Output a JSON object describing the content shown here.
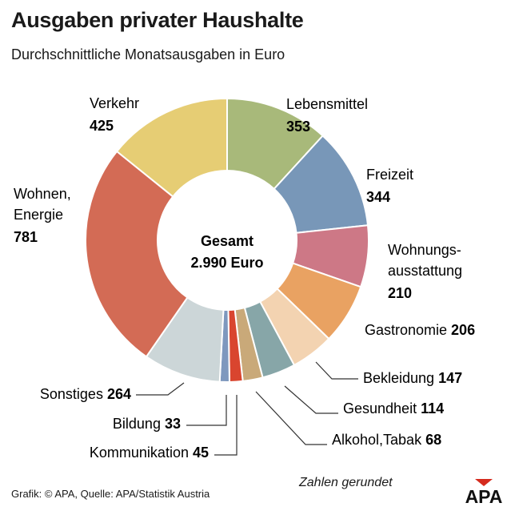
{
  "title": "Ausgaben privater Haushalte",
  "subtitle": "Durchschnittliche Monatsausgaben in Euro",
  "source": "Grafik: © APA, Quelle: APA/Statistik Austria",
  "note": "Zahlen gerundet",
  "logo_text": "APA",
  "center": {
    "line1": "Gesamt",
    "line2": "2.990 Euro"
  },
  "chart_data": {
    "type": "donut",
    "title": "Ausgaben privater Haushalte",
    "subtitle": "Durchschnittliche Monatsausgaben in Euro",
    "total_label": "Gesamt 2.990 Euro",
    "slices": [
      {
        "name": "Lebensmittel",
        "value": 353,
        "label_lines": [
          "Lebensmittel"
        ],
        "color": "#a8b97a"
      },
      {
        "name": "Freizeit",
        "value": 344,
        "label_lines": [
          "Freizeit"
        ],
        "color": "#7897b8"
      },
      {
        "name": "Wohnungsausstattung",
        "value": 210,
        "label_lines": [
          "Wohnungs-",
          "ausstattung"
        ],
        "color": "#cd7886"
      },
      {
        "name": "Gastronomie",
        "value": 206,
        "label_lines": [
          "Gastronomie"
        ],
        "color": "#e9a262"
      },
      {
        "name": "Bekleidung",
        "value": 147,
        "label_lines": [
          "Bekleidung"
        ],
        "color": "#f3d3b1"
      },
      {
        "name": "Gesundheit",
        "value": 114,
        "label_lines": [
          "Gesundheit"
        ],
        "color": "#87a6a8"
      },
      {
        "name": "Alkohol,Tabak",
        "value": 68,
        "label_lines": [
          "Alkohol,Tabak"
        ],
        "color": "#c9a979"
      },
      {
        "name": "Kommunikation",
        "value": 45,
        "label_lines": [
          "Kommunikation"
        ],
        "color": "#d9452f"
      },
      {
        "name": "Bildung",
        "value": 33,
        "label_lines": [
          "Bildung"
        ],
        "color": "#7e98be"
      },
      {
        "name": "Sonstiges",
        "value": 264,
        "label_lines": [
          "Sonstiges"
        ],
        "color": "#ccd6d8"
      },
      {
        "name": "Wohnen, Energie",
        "value": 781,
        "label_lines": [
          "Wohnen,",
          "Energie"
        ],
        "color": "#d36b55"
      },
      {
        "name": "Verkehr",
        "value": 425,
        "label_lines": [
          "Verkehr"
        ],
        "color": "#e6cd74"
      }
    ]
  }
}
